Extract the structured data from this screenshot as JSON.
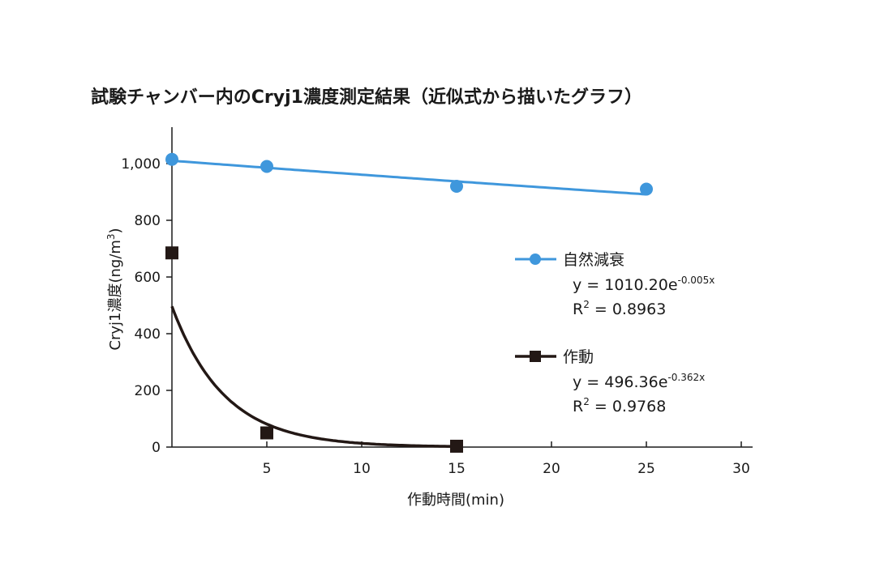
{
  "chart_data": {
    "type": "scatter",
    "title": "試験チャンバー内のCryj1濃度測定結果（近似式から描いたグラフ）",
    "xlabel": "作動時間(min)",
    "ylabel": "Cryj1濃度(ng/m",
    "ylabel_sup": "3",
    "ylabel_end": ")",
    "xlim": [
      0,
      30
    ],
    "ylim": [
      0,
      1100
    ],
    "x_ticks": [
      5,
      10,
      15,
      20,
      25,
      30
    ],
    "y_ticks": [
      0,
      200,
      400,
      600,
      800,
      1000
    ],
    "y_tick_labels": [
      "0",
      "200",
      "400",
      "600",
      "800",
      "1,000"
    ],
    "grid": false,
    "legend_position": "right",
    "series": [
      {
        "name": "自然減衰",
        "color": "#3f97dc",
        "marker": "circle",
        "x": [
          0,
          5,
          15,
          25
        ],
        "y": [
          1015,
          990,
          920,
          910
        ],
        "fit": {
          "a": 1010.2,
          "b": -0.005
        },
        "eq_prefix": "y = 1010.20e",
        "eq_exp": "-0.005x",
        "r2_prefix": "R",
        "r2_sup": "2",
        "r2_value": " = 0.8963"
      },
      {
        "name": "作動",
        "color": "#231815",
        "marker": "square",
        "x": [
          0,
          5,
          15
        ],
        "y": [
          685,
          50,
          3
        ],
        "fit": {
          "a": 496.36,
          "b": -0.362
        },
        "eq_prefix": "y = 496.36e",
        "eq_exp": "-0.362x",
        "r2_prefix": "R",
        "r2_sup": "2",
        "r2_value": " = 0.9768"
      }
    ]
  }
}
